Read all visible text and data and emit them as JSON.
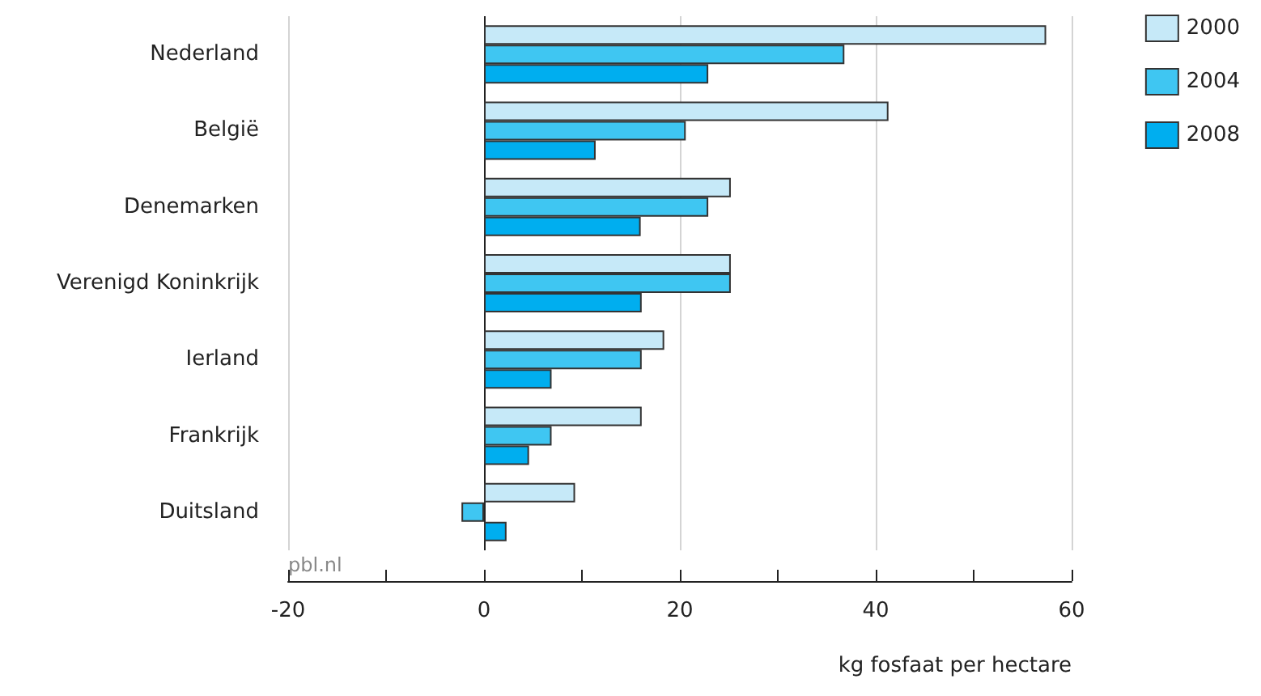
{
  "chart_data": {
    "type": "bar",
    "orientation": "horizontal",
    "xlabel": "kg fosfaat per hectare",
    "categories": [
      "Nederland",
      "België",
      "Denemarken",
      "Verenigd Koninkrijk",
      "Ierland",
      "Frankrijk",
      "Duitsland"
    ],
    "series": [
      {
        "name": "2000",
        "color": "#c6e9f8",
        "values": [
          57.4,
          41.3,
          25.2,
          25.2,
          18.4,
          16.1,
          9.3
        ]
      },
      {
        "name": "2004",
        "color": "#3fc6f2",
        "values": [
          36.8,
          20.6,
          22.9,
          25.2,
          16.1,
          6.9,
          -2.3
        ]
      },
      {
        "name": "2008",
        "color": "#00aeef",
        "values": [
          22.9,
          11.4,
          16.0,
          16.1,
          6.9,
          4.6,
          2.3
        ]
      }
    ],
    "xlim": [
      -20,
      60
    ],
    "xticks": [
      -20,
      {
        "value": -10,
        "label": null
      },
      0,
      {
        "value": 10,
        "label": null
      },
      20,
      {
        "value": 30,
        "label": null
      },
      40,
      {
        "value": 50,
        "label": null
      },
      60
    ],
    "grid": "x",
    "legend": "top right",
    "annotations": [
      "pbl.nl"
    ]
  }
}
